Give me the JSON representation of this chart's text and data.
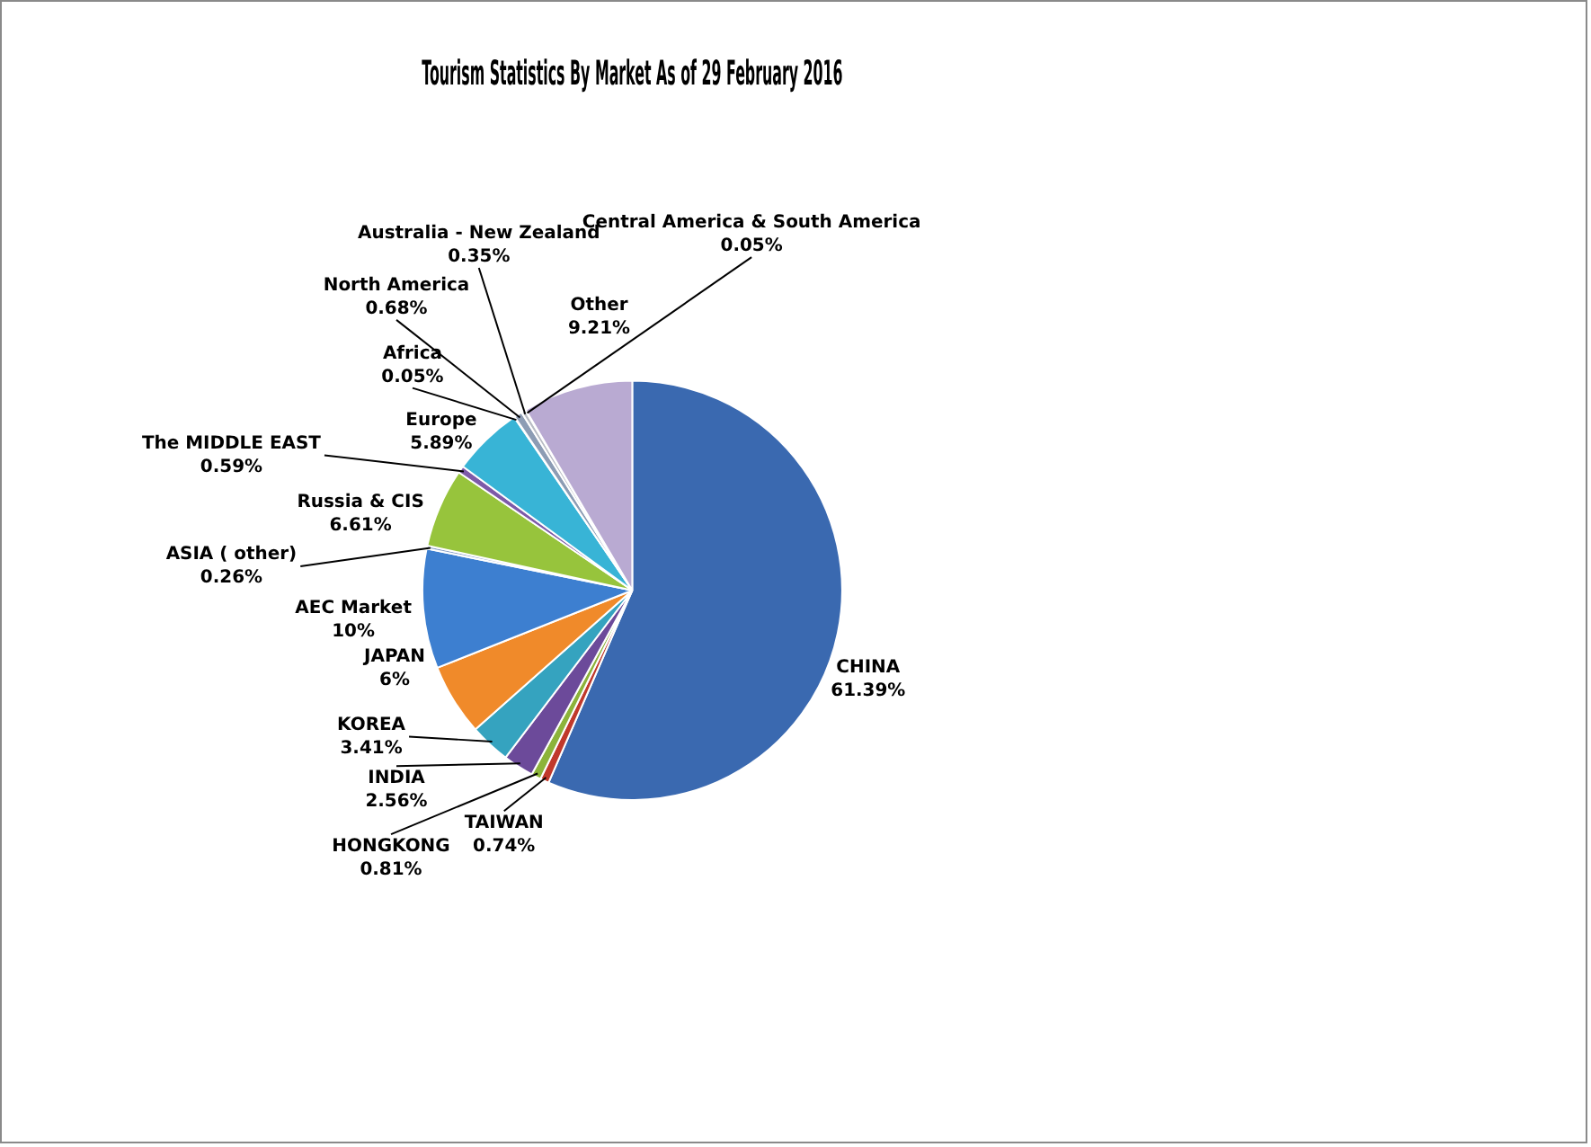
{
  "chart_data": {
    "type": "pie",
    "title": "Tourism Statistics By Market As of 29 February 2016",
    "categories": [
      "CHINA",
      "TAIWAN",
      "HONGKONG",
      "INDIA",
      "KOREA",
      "JAPAN",
      "AEC Market",
      "ASIA ( other)",
      "Russia & CIS",
      "The MIDDLE EAST",
      "Europe",
      "Africa",
      "North America",
      "Australia - New Zealand",
      "Central America & South America",
      "Other"
    ],
    "values": [
      61.39,
      0.74,
      0.81,
      2.56,
      3.41,
      6,
      10,
      0.26,
      6.61,
      0.59,
      5.89,
      0.05,
      0.68,
      0.35,
      0.05,
      9.21
    ],
    "value_labels": [
      "61.39%",
      "0.74%",
      "0.81%",
      "2.56%",
      "3.41%",
      "6%",
      "10%",
      "0.26%",
      "6.61%",
      "0.59%",
      "5.89%",
      "0.05%",
      "0.68%",
      "0.35%",
      "0.05%",
      "9.21%"
    ],
    "colors": [
      "#3a69b0",
      "#c0392b",
      "#8cb33a",
      "#6c4a9a",
      "#35a3bf",
      "#f08a2a",
      "#3d7fd0",
      "#8aa0c8",
      "#97c43c",
      "#7d5aa8",
      "#38b4d6",
      "#e08a3a",
      "#8c9cb4",
      "#b8bcc4",
      "#a0b870",
      "#b9aad2"
    ],
    "legend": false
  }
}
